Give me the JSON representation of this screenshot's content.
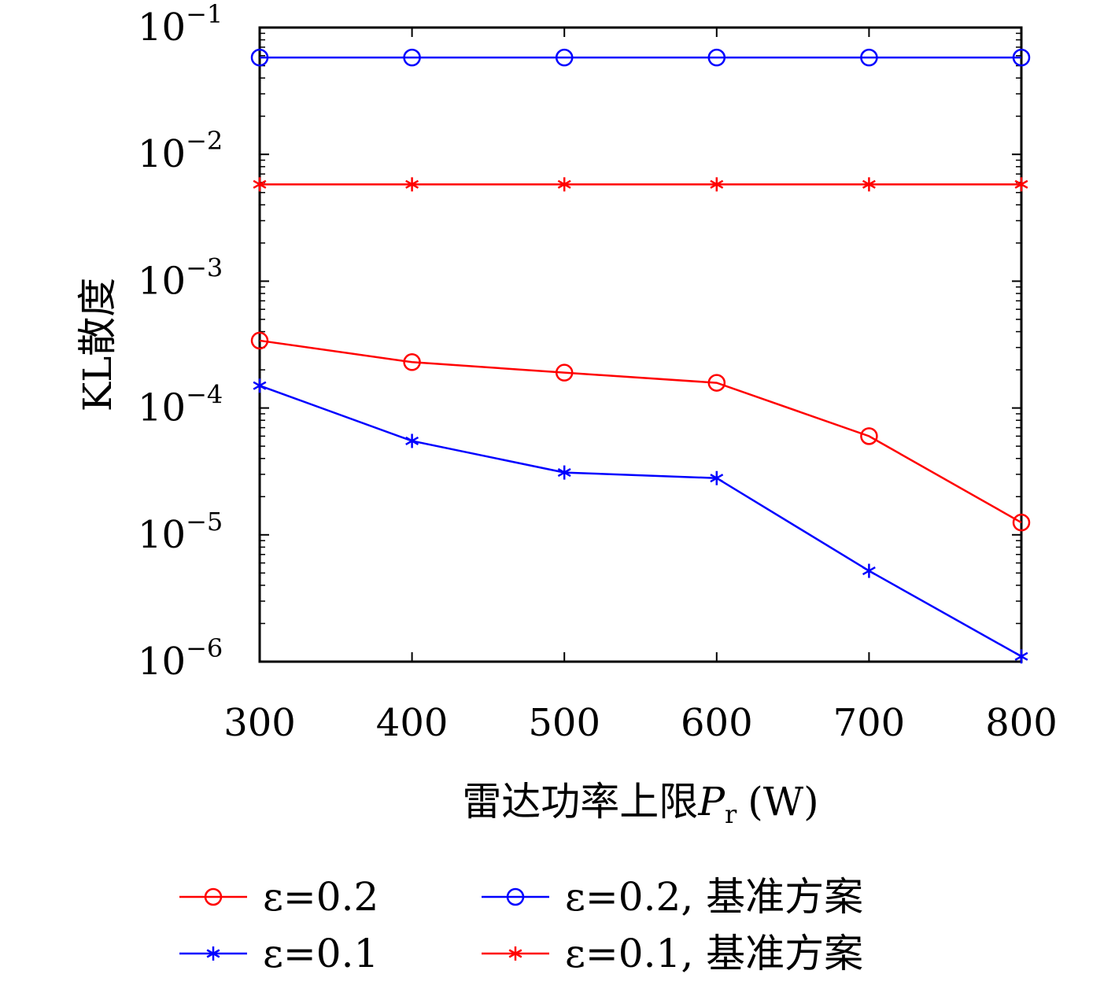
{
  "chart_data": {
    "type": "line",
    "title": "",
    "xlabel_prefix": "雷达功率上限",
    "xlabel_var": "P",
    "xlabel_sub": "r",
    "xlabel_unit": "(W)",
    "ylabel": "KL散度",
    "yscale": "log",
    "xlim": [
      300,
      800
    ],
    "ylim": [
      1e-06,
      0.1
    ],
    "x": [
      300,
      400,
      500,
      600,
      700,
      800
    ],
    "x_tick_labels": [
      "300",
      "400",
      "500",
      "600",
      "700",
      "800"
    ],
    "y_ticks": [
      {
        "base": "10",
        "exp": "−1",
        "value": 0.1
      },
      {
        "base": "10",
        "exp": "−2",
        "value": 0.01
      },
      {
        "base": "10",
        "exp": "−3",
        "value": 0.001
      },
      {
        "base": "10",
        "exp": "−4",
        "value": 0.0001
      },
      {
        "base": "10",
        "exp": "−5",
        "value": 1e-05
      },
      {
        "base": "10",
        "exp": "−6",
        "value": 1e-06
      }
    ],
    "grid": false,
    "legend_position": "bottom",
    "series": [
      {
        "name": "ε=0.2",
        "color": "#ff0000",
        "marker": "circle",
        "values": [
          0.00034,
          0.00023,
          0.00019,
          0.000158,
          6e-05,
          1.25e-05
        ]
      },
      {
        "name": "ε=0.1",
        "color": "#0000ff",
        "marker": "asterisk",
        "values": [
          0.00015,
          5.5e-05,
          3.1e-05,
          2.8e-05,
          5.2e-06,
          1.1e-06
        ]
      },
      {
        "name": "ε=0.2, 基准方案",
        "color": "#0000ff",
        "marker": "circle",
        "values": [
          0.058,
          0.058,
          0.058,
          0.058,
          0.058,
          0.058
        ]
      },
      {
        "name": "ε=0.1, 基准方案",
        "color": "#ff0000",
        "marker": "asterisk",
        "values": [
          0.0058,
          0.0058,
          0.0058,
          0.0058,
          0.0058,
          0.0058
        ]
      }
    ]
  }
}
